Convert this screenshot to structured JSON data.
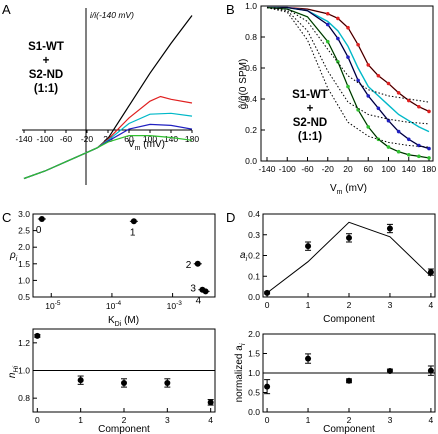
{
  "figure": {
    "panel_letters": [
      "A",
      "B",
      "C",
      "D"
    ]
  },
  "chart_data": [
    {
      "panel": "A",
      "type": "line",
      "annotation": [
        "S1-WT",
        "+",
        "S2-ND",
        "(1:1)"
      ],
      "ylabel": "i/i(-140 mV)",
      "xlabel": "V",
      "xlabel_sub": "m",
      "xlabel_unit": " (mV)",
      "xlim": [
        -140,
        180
      ],
      "ylim": [
        -0.4,
        1.5
      ],
      "xticks": [
        "-140",
        "-100",
        "-60",
        "-20",
        "20",
        "60",
        "100",
        "140",
        "180"
      ],
      "series": [
        {
          "color": "#000000",
          "x": [
            -140,
            -100,
            -60,
            -20,
            0,
            20,
            60,
            100,
            140,
            180
          ],
          "y": [
            -0.33,
            -0.25,
            -0.15,
            -0.05,
            0,
            0.1,
            0.45,
            0.8,
            1.12,
            1.42
          ]
        },
        {
          "color": "#e02020",
          "x": [
            -140,
            -100,
            -60,
            -20,
            0,
            20,
            60,
            100,
            120,
            140,
            180
          ],
          "y": [
            -0.33,
            -0.25,
            -0.15,
            -0.05,
            0,
            0.09,
            0.32,
            0.5,
            0.55,
            0.52,
            0.48
          ]
        },
        {
          "color": "#00b8c8",
          "x": [
            -140,
            -100,
            -60,
            -20,
            0,
            20,
            60,
            100,
            140,
            180
          ],
          "y": [
            -0.33,
            -0.25,
            -0.15,
            -0.05,
            0,
            0.08,
            0.26,
            0.36,
            0.37,
            0.34
          ]
        },
        {
          "color": "#2020c0",
          "x": [
            -140,
            -100,
            -60,
            -20,
            0,
            20,
            60,
            100,
            140,
            180
          ],
          "y": [
            -0.33,
            -0.25,
            -0.15,
            -0.05,
            0,
            0.07,
            0.2,
            0.25,
            0.24,
            0.2
          ]
        },
        {
          "color": "#30c030",
          "x": [
            -140,
            -100,
            -60,
            -20,
            0,
            20,
            60,
            100,
            140,
            180
          ],
          "y": [
            -0.33,
            -0.25,
            -0.15,
            -0.05,
            0,
            0.06,
            0.13,
            0.13,
            0.11,
            0.08
          ]
        }
      ]
    },
    {
      "panel": "B",
      "type": "line",
      "annotation": [
        "S1-WT",
        "+",
        "S2-ND",
        "(1:1)"
      ],
      "ylabel": "ĝ/ĝ(0 SPM)",
      "xlabel": "V",
      "xlabel_sub": "m",
      "xlabel_unit": " (mV)",
      "xlim": [
        -140,
        180
      ],
      "ylim": [
        0.0,
        1.0
      ],
      "xticks": [
        "-140",
        "-100",
        "-60",
        "-20",
        "20",
        "60",
        "100",
        "140",
        "180"
      ],
      "yticks": [
        "0.0",
        "0.2",
        "0.4",
        "0.6",
        "0.8",
        "1.0"
      ],
      "series": [
        {
          "color": "#e02020",
          "style": "markers+fit",
          "x": [
            -140,
            -100,
            -60,
            -20,
            0,
            20,
            40,
            60,
            80,
            100,
            120,
            140,
            160,
            180
          ],
          "y": [
            0.99,
            0.99,
            0.98,
            0.95,
            0.92,
            0.86,
            0.75,
            0.62,
            0.55,
            0.5,
            0.44,
            0.39,
            0.35,
            0.32
          ]
        },
        {
          "color": "#00b8c8",
          "style": "line",
          "x": [
            -140,
            -100,
            -60,
            -20,
            0,
            20,
            40,
            60,
            80,
            100,
            120,
            140,
            160,
            180
          ],
          "y": [
            0.99,
            0.99,
            0.97,
            0.9,
            0.84,
            0.74,
            0.6,
            0.48,
            0.42,
            0.36,
            0.3,
            0.26,
            0.22,
            0.19
          ]
        },
        {
          "color": "#2020c0",
          "style": "markers+fit",
          "x": [
            -140,
            -100,
            -60,
            -20,
            0,
            20,
            40,
            60,
            80,
            100,
            120,
            140,
            160,
            180
          ],
          "y": [
            0.99,
            0.99,
            0.97,
            0.88,
            0.79,
            0.67,
            0.52,
            0.42,
            0.34,
            0.26,
            0.19,
            0.14,
            0.1,
            0.08
          ]
        },
        {
          "color": "#30c030",
          "style": "markers+fit",
          "x": [
            -140,
            -100,
            -60,
            -20,
            0,
            20,
            40,
            60,
            80,
            100,
            120,
            140,
            160,
            180
          ],
          "y": [
            0.99,
            0.98,
            0.93,
            0.77,
            0.64,
            0.48,
            0.33,
            0.22,
            0.14,
            0.09,
            0.06,
            0.04,
            0.03,
            0.02
          ]
        },
        {
          "color": "#000000",
          "style": "dotted",
          "x": [
            -140,
            -100,
            -60,
            -20,
            20,
            60,
            100,
            140,
            180
          ],
          "y": [
            0.99,
            0.98,
            0.9,
            0.72,
            0.55,
            0.46,
            0.42,
            0.4,
            0.38
          ]
        },
        {
          "color": "#000000",
          "style": "dotted",
          "x": [
            -140,
            -100,
            -60,
            -20,
            20,
            60,
            100,
            140,
            180
          ],
          "y": [
            0.99,
            0.97,
            0.84,
            0.58,
            0.38,
            0.3,
            0.27,
            0.25,
            0.24
          ]
        },
        {
          "color": "#000000",
          "style": "dotted",
          "x": [
            -140,
            -100,
            -60,
            -20,
            20,
            60,
            100,
            140,
            180
          ],
          "y": [
            0.99,
            0.96,
            0.78,
            0.47,
            0.25,
            0.16,
            0.12,
            0.1,
            0.09
          ]
        }
      ]
    },
    {
      "panel": "C",
      "subplot": "top",
      "type": "scatter",
      "xscale": "log",
      "ylabel": "ρ",
      "ylabel_sub": "i",
      "xlabel": "K",
      "xlabel_sub": "Di",
      "xlabel_unit": " (M)",
      "xlim": [
        5e-06,
        0.005
      ],
      "ylim": [
        0.5,
        3.0
      ],
      "yticks": [
        "0.5",
        "1.0",
        "1.5",
        "2.0",
        "2.5",
        "3.0"
      ],
      "xtick_labels": [
        {
          "base": "10",
          "exp": "-5",
          "v": 1e-05
        },
        {
          "base": "10",
          "exp": "-4",
          "v": 0.0001
        },
        {
          "base": "10",
          "exp": "-3",
          "v": 0.001
        }
      ],
      "points": [
        {
          "label": "0",
          "x": 7e-06,
          "y": 2.85
        },
        {
          "label": "1",
          "x": 0.00023,
          "y": 2.78
        },
        {
          "label": "2",
          "x": 0.0026,
          "y": 1.5
        },
        {
          "label": "3",
          "x": 0.0031,
          "y": 0.72
        },
        {
          "label": "4",
          "x": 0.0035,
          "y": 0.67
        }
      ]
    },
    {
      "panel": "C",
      "subplot": "bottom",
      "type": "scatter",
      "ylabel": "n",
      "ylabel_sub": "Hi",
      "xlabel": "Component",
      "xlim": [
        -0.1,
        4.1
      ],
      "ylim": [
        0.7,
        1.3
      ],
      "xticks": [
        "0",
        "1",
        "2",
        "3",
        "4"
      ],
      "yticks": [
        "0.8",
        "1.0",
        "1.2"
      ],
      "reference_line": 1.0,
      "x": [
        0,
        1,
        2,
        3,
        4
      ],
      "y": [
        1.25,
        0.93,
        0.91,
        0.91,
        0.77
      ],
      "err": [
        0.01,
        0.03,
        0.03,
        0.03,
        0.02
      ]
    },
    {
      "panel": "D",
      "subplot": "top",
      "type": "scatter",
      "ylabel": "a",
      "ylabel_sub": "i",
      "xlabel": "Component",
      "xlim": [
        -0.1,
        4.1
      ],
      "ylim": [
        0.0,
        0.4
      ],
      "xticks": [
        "0",
        "1",
        "2",
        "3",
        "4"
      ],
      "yticks": [
        "0.0",
        "0.1",
        "0.2",
        "0.3",
        "0.4"
      ],
      "x": [
        0,
        1,
        2,
        3,
        4
      ],
      "y": [
        0.02,
        0.245,
        0.285,
        0.33,
        0.12
      ],
      "err": [
        0.005,
        0.02,
        0.02,
        0.02,
        0.015
      ],
      "line_x": [
        0,
        1,
        2,
        3,
        4
      ],
      "line_y": [
        0.02,
        0.17,
        0.36,
        0.29,
        0.1
      ]
    },
    {
      "panel": "D",
      "subplot": "bottom",
      "type": "scatter",
      "ylabel": "normalized a",
      "ylabel_sub": "i",
      "xlabel": "Component",
      "xlim": [
        -0.1,
        4.1
      ],
      "ylim": [
        0.0,
        2.0
      ],
      "xticks": [
        "0",
        "1",
        "2",
        "3",
        "4"
      ],
      "yticks": [
        "0.0",
        "0.5",
        "1.0",
        "1.5",
        "2.0"
      ],
      "reference_line": 1.0,
      "x": [
        0,
        1,
        2,
        3,
        4
      ],
      "y": [
        0.65,
        1.37,
        0.8,
        1.05,
        1.06
      ],
      "err": [
        0.18,
        0.12,
        0.05,
        0.05,
        0.12
      ]
    }
  ]
}
